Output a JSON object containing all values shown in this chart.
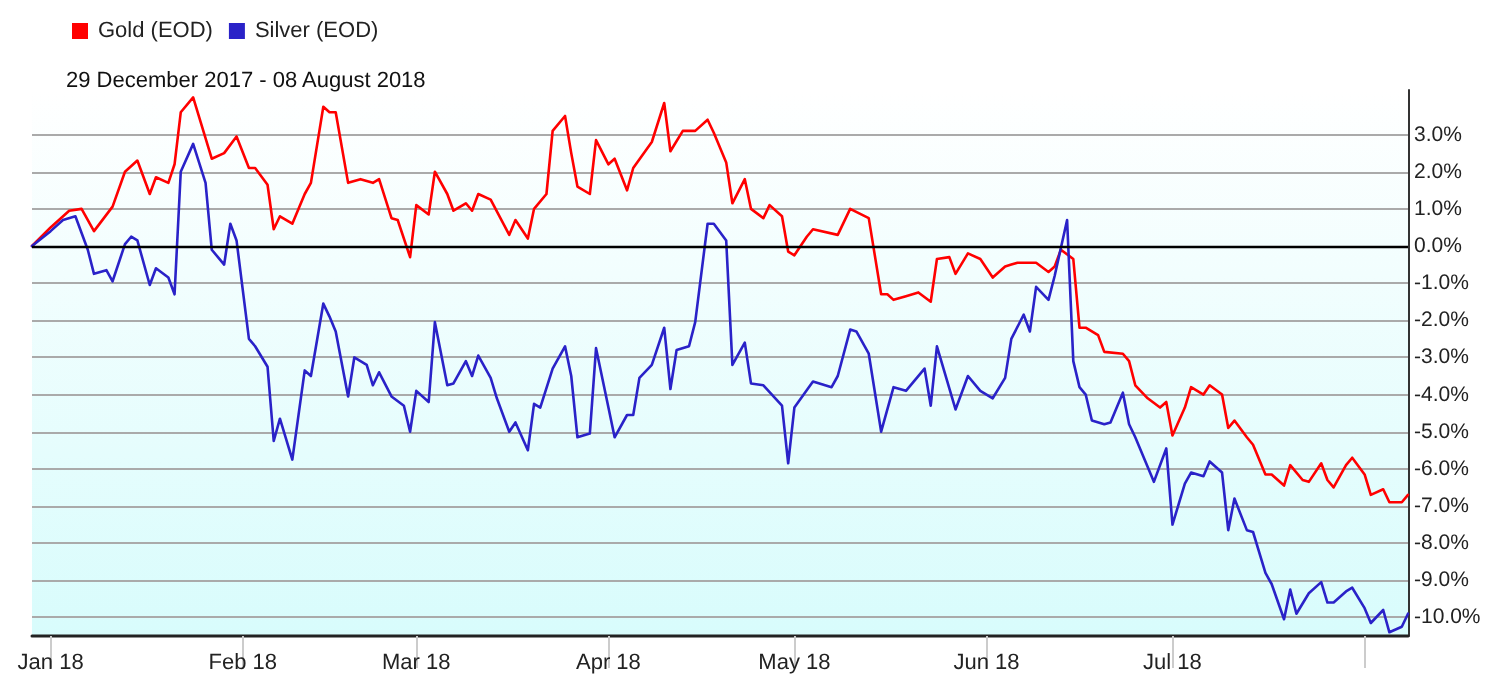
{
  "chart_data": {
    "type": "line",
    "subtitle": "29 December 2017 - 08 August 2018",
    "xlim": [
      "2017-12-29",
      "2018-08-08"
    ],
    "xticks": [
      {
        "value": "2018-01-01",
        "label": "Jan 18"
      },
      {
        "value": "2018-02-01",
        "label": "Feb 18"
      },
      {
        "value": "2018-03-01",
        "label": "Mar 18"
      },
      {
        "value": "2018-04-01",
        "label": "Apr 18"
      },
      {
        "value": "2018-05-01",
        "label": "May 18"
      },
      {
        "value": "2018-06-01",
        "label": "Jun 18"
      },
      {
        "value": "2018-07-01",
        "label": "Jul 18"
      },
      {
        "value": "2018-08-01",
        "label": null
      }
    ],
    "ylim": [
      -10.5,
      4.2
    ],
    "yticks": [
      {
        "value": -10,
        "label": "-10.0%"
      },
      {
        "value": -9,
        "label": "-9.0%"
      },
      {
        "value": -8,
        "label": "-8.0%"
      },
      {
        "value": -7,
        "label": "-7.0%"
      },
      {
        "value": -6,
        "label": "-6.0%"
      },
      {
        "value": -5,
        "label": "-5.0%"
      },
      {
        "value": -4,
        "label": "-4.0%"
      },
      {
        "value": -3,
        "label": "-3.0%"
      },
      {
        "value": -2,
        "label": "-2.0%"
      },
      {
        "value": -1,
        "label": "-1.0%"
      },
      {
        "value": 0,
        "label": "0.0%"
      },
      {
        "value": 1,
        "label": "1.0%"
      },
      {
        "value": 2,
        "label": "2.0%"
      },
      {
        "value": 3,
        "label": "3.0%"
      }
    ],
    "grid": "y",
    "legend": "top left",
    "marker": "none",
    "line_style": "solid",
    "ref_lines": [
      {
        "axis": "y",
        "value": 0,
        "label": null,
        "color": "#000000"
      }
    ],
    "series": [
      {
        "name": "Gold (EOD)",
        "color": "#ff0000",
        "x": [
          "2017-12-29",
          "2018-01-01",
          "2018-01-04",
          "2018-01-06",
          "2018-01-08",
          "2018-01-11",
          "2018-01-13",
          "2018-01-15",
          "2018-01-17",
          "2018-01-18",
          "2018-01-20",
          "2018-01-21",
          "2018-01-22",
          "2018-01-24",
          "2018-01-27",
          "2018-01-29",
          "2018-01-31",
          "2018-02-02",
          "2018-02-03",
          "2018-02-05",
          "2018-02-06",
          "2018-02-07",
          "2018-02-09",
          "2018-02-11",
          "2018-02-12",
          "2018-02-14",
          "2018-02-15",
          "2018-02-16",
          "2018-02-18",
          "2018-02-20",
          "2018-02-22",
          "2018-02-23",
          "2018-02-25",
          "2018-02-26",
          "2018-02-28",
          "2018-03-01",
          "2018-03-03",
          "2018-03-04",
          "2018-03-06",
          "2018-03-07",
          "2018-03-09",
          "2018-03-10",
          "2018-03-11",
          "2018-03-13",
          "2018-03-16",
          "2018-03-17",
          "2018-03-19",
          "2018-03-20",
          "2018-03-22",
          "2018-03-23",
          "2018-03-25",
          "2018-03-26",
          "2018-03-27",
          "2018-03-29",
          "2018-03-30",
          "2018-04-01",
          "2018-04-02",
          "2018-04-04",
          "2018-04-05",
          "2018-04-08",
          "2018-04-10",
          "2018-04-11",
          "2018-04-13",
          "2018-04-15",
          "2018-04-17",
          "2018-04-18",
          "2018-04-20",
          "2018-04-21",
          "2018-04-23",
          "2018-04-24",
          "2018-04-26",
          "2018-04-27",
          "2018-04-29",
          "2018-04-30",
          "2018-05-01",
          "2018-05-03",
          "2018-05-04",
          "2018-05-08",
          "2018-05-10",
          "2018-05-13",
          "2018-05-15",
          "2018-05-16",
          "2018-05-17",
          "2018-05-19",
          "2018-05-21",
          "2018-05-23",
          "2018-05-24",
          "2018-05-26",
          "2018-05-27",
          "2018-05-29",
          "2018-05-31",
          "2018-06-02",
          "2018-06-04",
          "2018-06-05",
          "2018-06-06",
          "2018-06-09",
          "2018-06-11",
          "2018-06-12",
          "2018-06-13",
          "2018-06-15",
          "2018-06-16",
          "2018-06-17",
          "2018-06-19",
          "2018-06-20",
          "2018-06-23",
          "2018-06-24",
          "2018-06-25",
          "2018-06-27",
          "2018-06-29",
          "2018-06-30",
          "2018-07-01",
          "2018-07-03",
          "2018-07-04",
          "2018-07-06",
          "2018-07-07",
          "2018-07-09",
          "2018-07-10",
          "2018-07-11",
          "2018-07-13",
          "2018-07-14",
          "2018-07-16",
          "2018-07-17",
          "2018-07-19",
          "2018-07-20",
          "2018-07-22",
          "2018-07-23",
          "2018-07-25",
          "2018-07-26",
          "2018-07-27",
          "2018-07-29",
          "2018-07-30",
          "2018-08-01",
          "2018-08-02",
          "2018-08-04",
          "2018-08-05",
          "2018-08-07",
          "2018-08-08"
        ],
        "values": [
          0,
          0.5,
          0.95,
          1.0,
          0.4,
          1.06,
          2.0,
          2.3,
          1.4,
          1.85,
          1.7,
          2.2,
          3.6,
          4.0,
          2.35,
          2.5,
          2.95,
          2.1,
          2.1,
          1.65,
          0.45,
          0.8,
          0.6,
          1.4,
          1.7,
          3.75,
          3.6,
          3.6,
          1.7,
          1.8,
          1.7,
          1.8,
          0.75,
          0.7,
          -0.3,
          1.1,
          0.85,
          2.0,
          1.4,
          0.95,
          1.15,
          0.95,
          1.4,
          1.25,
          0.3,
          0.7,
          0.2,
          1.0,
          1.4,
          3.1,
          3.5,
          2.5,
          1.6,
          1.4,
          2.85,
          2.2,
          2.35,
          1.5,
          2.1,
          2.8,
          3.85,
          2.55,
          3.1,
          3.1,
          3.4,
          3.05,
          2.25,
          1.15,
          1.8,
          1.0,
          0.75,
          1.1,
          0.8,
          -0.15,
          -0.25,
          0.25,
          0.45,
          0.3,
          1.0,
          0.75,
          -1.3,
          -1.3,
          -1.45,
          -1.35,
          -1.25,
          -1.5,
          -0.35,
          -0.3,
          -0.75,
          -0.2,
          -0.35,
          -0.85,
          -0.55,
          -0.5,
          -0.45,
          -0.45,
          -0.7,
          -0.55,
          -0.1,
          -0.35,
          -2.2,
          -2.2,
          -2.4,
          -2.85,
          -2.9,
          -3.1,
          -3.75,
          -4.1,
          -4.35,
          -4.2,
          -5.1,
          -4.35,
          -3.8,
          -4.0,
          -3.75,
          -4.0,
          -4.9,
          -4.7,
          -5.15,
          -5.35,
          -6.15,
          -6.15,
          -6.45,
          -5.9,
          -6.3,
          -6.35,
          -5.85,
          -6.3,
          -6.5,
          -5.9,
          -5.7,
          -6.15,
          -6.7,
          -6.55,
          -6.9,
          -6.9,
          -6.7
        ]
      },
      {
        "name": "Silver (EOD)",
        "color": "#2a22c8",
        "x": [
          "2017-12-29",
          "2018-01-01",
          "2018-01-03",
          "2018-01-05",
          "2018-01-07",
          "2018-01-08",
          "2018-01-10",
          "2018-01-11",
          "2018-01-13",
          "2018-01-14",
          "2018-01-15",
          "2018-01-17",
          "2018-01-18",
          "2018-01-20",
          "2018-01-21",
          "2018-01-22",
          "2018-01-24",
          "2018-01-26",
          "2018-01-27",
          "2018-01-29",
          "2018-01-30",
          "2018-01-31",
          "2018-02-02",
          "2018-02-03",
          "2018-02-05",
          "2018-02-06",
          "2018-02-07",
          "2018-02-09",
          "2018-02-11",
          "2018-02-12",
          "2018-02-14",
          "2018-02-15",
          "2018-02-16",
          "2018-02-18",
          "2018-02-19",
          "2018-02-21",
          "2018-02-22",
          "2018-02-23",
          "2018-02-25",
          "2018-02-27",
          "2018-02-28",
          "2018-03-01",
          "2018-03-03",
          "2018-03-04",
          "2018-03-06",
          "2018-03-07",
          "2018-03-09",
          "2018-03-10",
          "2018-03-11",
          "2018-03-13",
          "2018-03-14",
          "2018-03-16",
          "2018-03-17",
          "2018-03-19",
          "2018-03-20",
          "2018-03-21",
          "2018-03-23",
          "2018-03-25",
          "2018-03-26",
          "2018-03-27",
          "2018-03-29",
          "2018-03-30",
          "2018-04-01",
          "2018-04-02",
          "2018-04-04",
          "2018-04-05",
          "2018-04-06",
          "2018-04-08",
          "2018-04-10",
          "2018-04-11",
          "2018-04-12",
          "2018-04-14",
          "2018-04-15",
          "2018-04-17",
          "2018-04-18",
          "2018-04-20",
          "2018-04-21",
          "2018-04-23",
          "2018-04-24",
          "2018-04-26",
          "2018-04-29",
          "2018-04-30",
          "2018-05-01",
          "2018-05-04",
          "2018-05-07",
          "2018-05-08",
          "2018-05-10",
          "2018-05-11",
          "2018-05-13",
          "2018-05-15",
          "2018-05-17",
          "2018-05-19",
          "2018-05-22",
          "2018-05-23",
          "2018-05-24",
          "2018-05-27",
          "2018-05-29",
          "2018-05-31",
          "2018-06-02",
          "2018-06-04",
          "2018-06-05",
          "2018-06-07",
          "2018-06-08",
          "2018-06-09",
          "2018-06-11",
          "2018-06-12",
          "2018-06-14",
          "2018-06-15",
          "2018-06-16",
          "2018-06-17",
          "2018-06-18",
          "2018-06-20",
          "2018-06-21",
          "2018-06-23",
          "2018-06-24",
          "2018-06-25",
          "2018-06-28",
          "2018-06-30",
          "2018-07-01",
          "2018-07-03",
          "2018-07-04",
          "2018-07-06",
          "2018-07-07",
          "2018-07-09",
          "2018-07-10",
          "2018-07-11",
          "2018-07-13",
          "2018-07-14",
          "2018-07-16",
          "2018-07-17",
          "2018-07-19",
          "2018-07-20",
          "2018-07-21",
          "2018-07-23",
          "2018-07-25",
          "2018-07-26",
          "2018-07-27",
          "2018-07-29",
          "2018-07-30",
          "2018-08-01",
          "2018-08-02",
          "2018-08-04",
          "2018-08-05",
          "2018-08-07",
          "2018-08-08"
        ],
        "values": [
          0,
          0.4,
          0.7,
          0.8,
          -0.1,
          -0.75,
          -0.65,
          -0.95,
          0.05,
          0.25,
          0.15,
          -1.05,
          -0.6,
          -0.85,
          -1.3,
          2.0,
          2.75,
          1.7,
          -0.1,
          -0.5,
          0.6,
          0.15,
          -2.5,
          -2.7,
          -3.25,
          -5.25,
          -4.65,
          -5.75,
          -3.35,
          -3.5,
          -1.55,
          -1.9,
          -2.3,
          -4.05,
          -3.0,
          -3.2,
          -3.75,
          -3.4,
          -4.05,
          -4.3,
          -5.0,
          -3.9,
          -4.2,
          -2.05,
          -3.75,
          -3.7,
          -3.1,
          -3.5,
          -2.95,
          -3.55,
          -4.1,
          -5.0,
          -4.75,
          -5.5,
          -4.25,
          -4.35,
          -3.3,
          -2.7,
          -3.5,
          -5.15,
          -5.05,
          -2.75,
          -4.35,
          -5.15,
          -4.55,
          -4.55,
          -3.55,
          -3.2,
          -2.2,
          -3.85,
          -2.8,
          -2.7,
          -2.05,
          0.6,
          0.6,
          0.15,
          -3.2,
          -2.6,
          -3.7,
          -3.75,
          -4.3,
          -5.85,
          -4.35,
          -3.65,
          -3.8,
          -3.5,
          -2.25,
          -2.3,
          -2.9,
          -5.0,
          -3.8,
          -3.9,
          -3.3,
          -4.3,
          -2.7,
          -4.4,
          -3.5,
          -3.9,
          -4.1,
          -3.55,
          -2.5,
          -1.85,
          -2.3,
          -1.1,
          -1.45,
          -0.8,
          0.7,
          -3.1,
          -3.8,
          -4.0,
          -4.7,
          -4.8,
          -4.75,
          -3.95,
          -4.8,
          -5.15,
          -6.35,
          -5.45,
          -7.5,
          -6.4,
          -6.1,
          -6.2,
          -5.8,
          -6.1,
          -7.65,
          -6.8,
          -7.65,
          -7.7,
          -8.8,
          -9.1,
          -10.05,
          -9.25,
          -9.9,
          -9.35,
          -9.05,
          -9.6,
          -9.6,
          -9.3,
          -9.2,
          -9.75,
          -10.15,
          -9.8,
          -10.4,
          -10.25,
          -9.9
        ]
      }
    ]
  }
}
